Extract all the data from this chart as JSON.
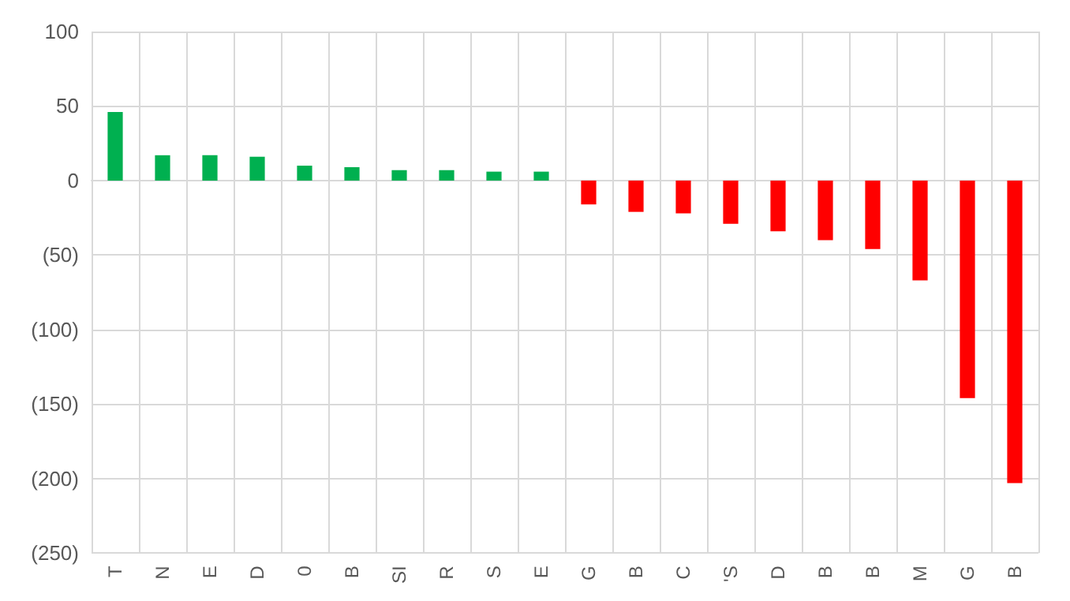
{
  "chart_data": {
    "type": "bar",
    "categories": [
      "T",
      "N",
      "E",
      "D",
      "0",
      "B",
      "SI",
      "R",
      "S",
      "E",
      "G",
      "B",
      "C",
      "'S",
      "D",
      "B",
      "B",
      "M",
      "G",
      "B"
    ],
    "values": [
      46,
      17,
      17,
      16,
      10,
      9,
      7,
      7,
      6,
      6,
      -16,
      -21,
      -22,
      -29,
      -34,
      -40,
      -46,
      -67,
      -146,
      -203
    ],
    "colors": [
      "#00b050",
      "#00b050",
      "#00b050",
      "#00b050",
      "#00b050",
      "#00b050",
      "#00b050",
      "#00b050",
      "#00b050",
      "#00b050",
      "#ff0000",
      "#ff0000",
      "#ff0000",
      "#ff0000",
      "#ff0000",
      "#ff0000",
      "#ff0000",
      "#ff0000",
      "#ff0000",
      "#ff0000"
    ],
    "ylim": [
      -250,
      100
    ],
    "yticks": [
      {
        "value": -250,
        "label": "(250)"
      },
      {
        "value": -200,
        "label": "(200)"
      },
      {
        "value": -150,
        "label": "(150)"
      },
      {
        "value": -100,
        "label": "(100)"
      },
      {
        "value": -50,
        "label": "(50)"
      },
      0,
      50,
      100
    ],
    "grid": true
  }
}
